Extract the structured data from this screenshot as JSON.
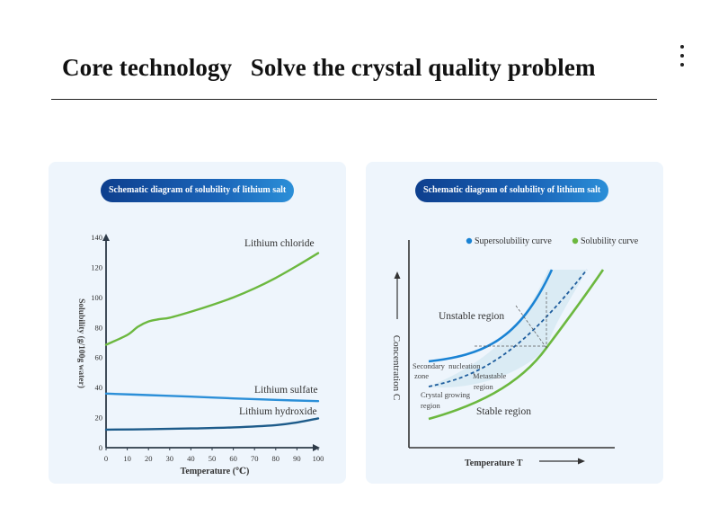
{
  "header": {
    "title": "Core technology   Solve the crystal quality problem"
  },
  "chart_data": [
    {
      "type": "line",
      "pill_label": "Schematic diagram of solubility of lithium salt",
      "xlabel": "Temperature (℃)",
      "ylabel": "Solubility (g/100g water)",
      "xlim": [
        0,
        100
      ],
      "ylim": [
        0,
        140
      ],
      "x_ticks": [
        "0",
        "10",
        "20",
        "30",
        "40",
        "50",
        "60",
        "70",
        "80",
        "90",
        "100"
      ],
      "y_ticks": [
        "0",
        "20",
        "40",
        "60",
        "80",
        "100",
        "120",
        "140"
      ],
      "series": [
        {
          "name": "Lithium chloride",
          "color": "#6cb83f",
          "points": [
            [
              0,
              68.5
            ],
            [
              10,
              75
            ],
            [
              15,
              80.5
            ],
            [
              20,
              84
            ],
            [
              25,
              85.5
            ],
            [
              30,
              86.5
            ],
            [
              40,
              90.5
            ],
            [
              50,
              95
            ],
            [
              60,
              100
            ],
            [
              70,
              106
            ],
            [
              80,
              113
            ],
            [
              90,
              121
            ],
            [
              100,
              129.5
            ]
          ]
        },
        {
          "name": "Lithium sulfate",
          "color": "#2b8fd8",
          "points": [
            [
              0,
              36
            ],
            [
              20,
              35
            ],
            [
              40,
              34
            ],
            [
              60,
              32.8
            ],
            [
              80,
              31.8
            ],
            [
              100,
              31
            ]
          ]
        },
        {
          "name": "Lithium hydroxide",
          "color": "#1d5b8a",
          "points": [
            [
              0,
              12
            ],
            [
              20,
              12.3
            ],
            [
              40,
              12.8
            ],
            [
              60,
              13.5
            ],
            [
              80,
              15
            ],
            [
              90,
              16.8
            ],
            [
              100,
              19.5
            ]
          ]
        }
      ]
    },
    {
      "type": "diagram",
      "pill_label": "Schematic diagram of solubility of lithium salt",
      "xlabel": "Temperature T",
      "ylabel": "Concentration C",
      "legend": [
        {
          "label": "Supersolubility curve",
          "color": "#1a83d4"
        },
        {
          "label": "Solubility curve",
          "color": "#6cb83f"
        }
      ],
      "regions": {
        "unstable": "Unstable region",
        "secondary_nucleation_1": "Secondary  nucleation",
        "secondary_nucleation_2": "zone",
        "metastable_1": "Metastable",
        "metastable_2": "region",
        "crystal_growing_1": "Crystal growing",
        "crystal_growing_2": "region",
        "stable": "Stable region"
      }
    }
  ]
}
